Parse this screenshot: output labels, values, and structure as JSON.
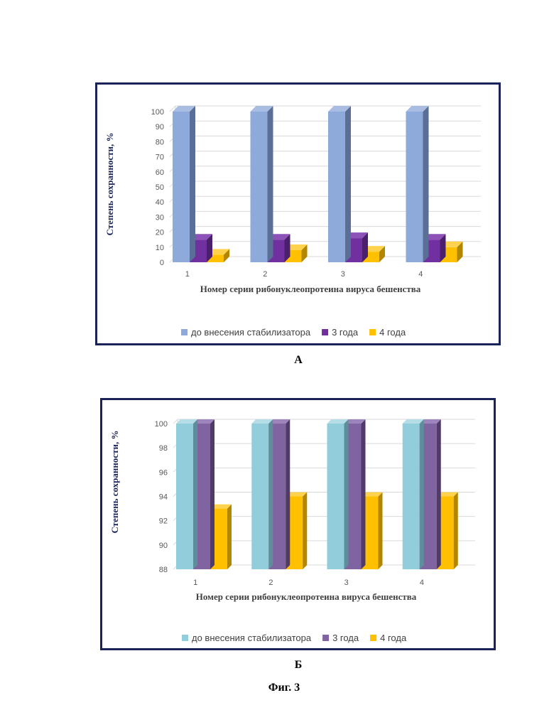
{
  "chart_data": [
    {
      "type": "bar",
      "panel": "А",
      "ylabel": "Степень сохранности, %",
      "xlabel": "Номер серии рибонуклеопротеина вируса бешенства",
      "categories": [
        "1",
        "2",
        "3",
        "4"
      ],
      "ylim": [
        0,
        100
      ],
      "yticks": [
        0,
        10,
        20,
        30,
        40,
        50,
        60,
        70,
        80,
        90,
        100
      ],
      "grid": true,
      "legend_position": "bottom",
      "series": [
        {
          "name": "до внесения стабилизатора",
          "values": [
            100,
            100,
            100,
            100
          ],
          "color": "#8eaadb",
          "side": "#5b6f96",
          "top": "#a9bde3"
        },
        {
          "name": "3 года",
          "values": [
            15,
            15,
            16,
            15
          ],
          "color": "#7030a0",
          "side": "#4a1f6b",
          "top": "#8d52b8"
        },
        {
          "name": "4 года",
          "values": [
            5,
            8,
            7,
            10
          ],
          "color": "#ffc000",
          "side": "#b38600",
          "top": "#ffd24d"
        }
      ]
    },
    {
      "type": "bar",
      "panel": "Б",
      "ylabel": "Степень сохранности, %",
      "xlabel": "Номер серии рибонуклеопротеина вируса бешенства",
      "categories": [
        "1",
        "2",
        "3",
        "4"
      ],
      "ylim": [
        88,
        100
      ],
      "yticks": [
        88,
        90,
        92,
        94,
        96,
        98,
        100
      ],
      "grid": true,
      "legend_position": "bottom",
      "series": [
        {
          "name": "до внесения стабилизатора",
          "values": [
            100,
            100,
            100,
            100
          ],
          "color": "#92cddc",
          "side": "#5e8e9a",
          "top": "#b5dde7"
        },
        {
          "name": "3 года",
          "values": [
            100,
            100,
            100,
            100
          ],
          "color": "#8064a2",
          "side": "#4f3a68",
          "top": "#9d85bb"
        },
        {
          "name": "4 года",
          "values": [
            93,
            94,
            94,
            94
          ],
          "color": "#ffc000",
          "side": "#b38600",
          "top": "#ffd24d"
        }
      ]
    }
  ],
  "labels": {
    "panel_a": "А",
    "panel_b": "Б",
    "figure": "Фиг. 3"
  }
}
